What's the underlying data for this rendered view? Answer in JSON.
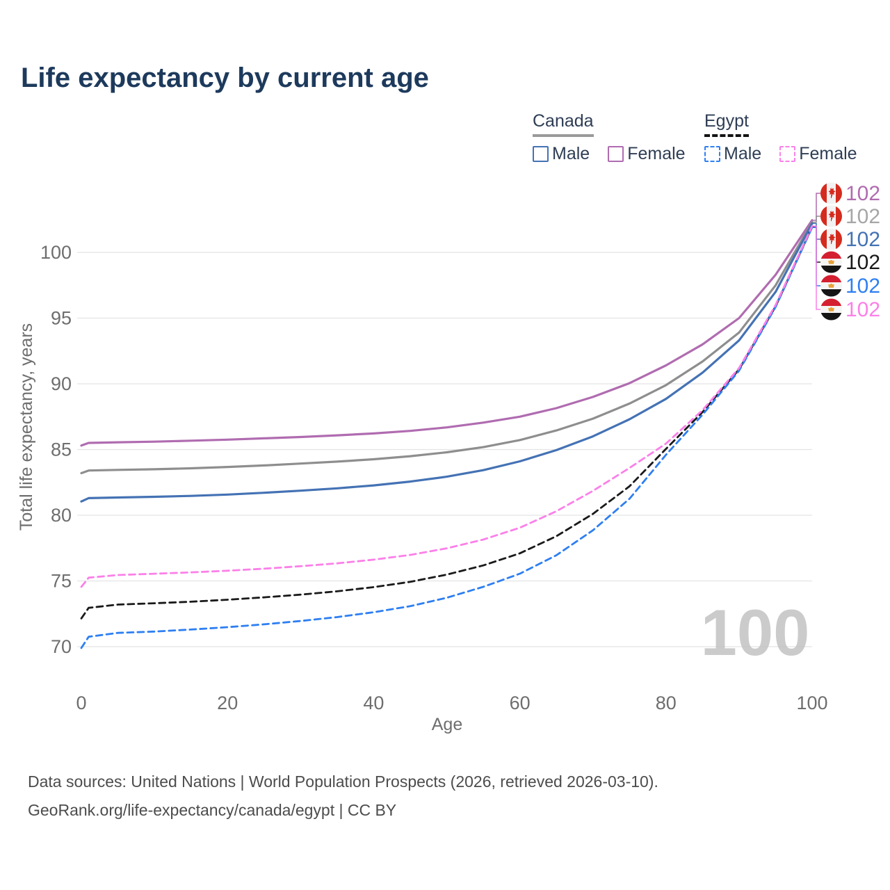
{
  "title": "Life expectancy by current age",
  "colors": {
    "background": "#ffffff",
    "title_text": "#1d3a5c",
    "legend_text": "#2e3d54",
    "axis_text": "#6e6e6e",
    "grid_line": "#e4e4e4",
    "watermark_text": "#bfbfbf",
    "footer_text": "#4c4c4c",
    "canada_male": "#4472b4",
    "canada_female": "#b06cb0",
    "canada_total": "#8e8e8e",
    "egypt_male": "#2e7ff2",
    "egypt_female": "#fb80e8",
    "egypt_total": "#1a1a1a"
  },
  "legend": {
    "groups": [
      {
        "name": "Canada",
        "line_style": "solid",
        "line_color": "#9a9a9a",
        "items": [
          {
            "label": "Male",
            "color": "#4472b4",
            "dashed": false
          },
          {
            "label": "Female",
            "color": "#b06cb0",
            "dashed": false
          }
        ]
      },
      {
        "name": "Egypt",
        "line_style": "dashed",
        "line_color": "#141414",
        "items": [
          {
            "label": "Male",
            "color": "#2e7ff2",
            "dashed": true
          },
          {
            "label": "Female",
            "color": "#fb80e8",
            "dashed": true
          }
        ]
      }
    ]
  },
  "chart_data": {
    "type": "line",
    "title": "Life expectancy by current age",
    "xlabel": "Age",
    "ylabel": "Total life expectancy, years",
    "xlim": [
      0,
      100
    ],
    "ylim": [
      69.5,
      103
    ],
    "x_ticks": [
      0,
      20,
      40,
      60,
      80,
      100
    ],
    "y_ticks": [
      70,
      75,
      80,
      85,
      90,
      95,
      100
    ],
    "grid": "horizontal",
    "legend_position": "top-right",
    "watermark": "100",
    "ages": [
      0,
      1,
      5,
      10,
      15,
      20,
      25,
      30,
      35,
      40,
      45,
      50,
      55,
      60,
      65,
      70,
      75,
      80,
      85,
      90,
      95,
      100
    ],
    "series": [
      {
        "name": "Canada Female",
        "country": "Canada",
        "sex": "Female",
        "color": "#b06cb0",
        "dashed": false,
        "flag": "canada",
        "end_label": "102",
        "label_row": 0,
        "values": [
          85.3,
          85.5,
          85.55,
          85.6,
          85.67,
          85.75,
          85.85,
          85.95,
          86.08,
          86.22,
          86.42,
          86.68,
          87.05,
          87.5,
          88.15,
          89.0,
          90.05,
          91.4,
          93.0,
          95.0,
          98.3,
          102.45
        ]
      },
      {
        "name": "Canada Both sexes",
        "country": "Canada",
        "sex": "Both",
        "color": "#8e8e8e",
        "dashed": false,
        "flag": "canada",
        "end_label": "102",
        "label_row": 1,
        "label_color": "#a6a6a6",
        "values": [
          83.2,
          83.4,
          83.45,
          83.5,
          83.57,
          83.67,
          83.79,
          83.93,
          84.08,
          84.26,
          84.49,
          84.79,
          85.18,
          85.72,
          86.45,
          87.35,
          88.5,
          89.9,
          91.7,
          93.9,
          97.5,
          102.3
        ]
      },
      {
        "name": "Canada Male",
        "country": "Canada",
        "sex": "Male",
        "color": "#4472b4",
        "dashed": false,
        "flag": "canada",
        "end_label": "102",
        "label_row": 2,
        "values": [
          81.05,
          81.3,
          81.35,
          81.4,
          81.47,
          81.57,
          81.71,
          81.87,
          82.05,
          82.27,
          82.56,
          82.93,
          83.43,
          84.1,
          84.95,
          86.0,
          87.3,
          88.85,
          90.85,
          93.3,
          97.0,
          102.2
        ]
      },
      {
        "name": "Egypt Both sexes",
        "country": "Egypt",
        "sex": "Both",
        "color": "#1a1a1a",
        "dashed": true,
        "flag": "egypt",
        "end_label": "102",
        "label_row": 3,
        "values": [
          72.15,
          72.95,
          73.2,
          73.3,
          73.42,
          73.57,
          73.75,
          73.96,
          74.21,
          74.53,
          74.93,
          75.48,
          76.18,
          77.1,
          78.4,
          80.1,
          82.2,
          85.05,
          87.85,
          91.1,
          95.9,
          101.95
        ]
      },
      {
        "name": "Egypt Male",
        "country": "Egypt",
        "sex": "Male",
        "color": "#2e7ff2",
        "dashed": true,
        "flag": "egypt",
        "end_label": "102",
        "label_row": 4,
        "values": [
          69.9,
          70.75,
          71.05,
          71.15,
          71.3,
          71.48,
          71.7,
          71.95,
          72.25,
          72.62,
          73.08,
          73.72,
          74.55,
          75.55,
          76.95,
          78.85,
          81.25,
          84.6,
          87.65,
          91.0,
          95.85,
          101.9
        ]
      },
      {
        "name": "Egypt Female",
        "country": "Egypt",
        "sex": "Female",
        "color": "#fb80e8",
        "dashed": true,
        "flag": "egypt",
        "end_label": "102",
        "label_row": 5,
        "values": [
          74.55,
          75.25,
          75.45,
          75.55,
          75.65,
          75.78,
          75.93,
          76.12,
          76.34,
          76.62,
          76.98,
          77.48,
          78.15,
          79.05,
          80.3,
          81.85,
          83.6,
          85.45,
          88.0,
          91.2,
          96.0,
          102.0
        ]
      }
    ]
  },
  "footer": {
    "line1": "Data sources: United Nations | World Population Prospects (2026, retrieved 2026-03-10).",
    "line2": "GeoRank.org/life-expectancy/canada/egypt | CC BY"
  }
}
